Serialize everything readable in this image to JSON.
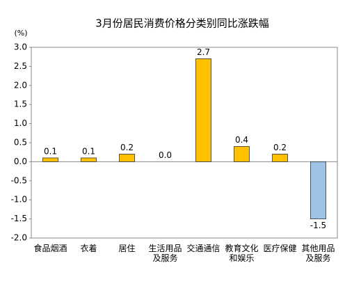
{
  "chart_data": {
    "type": "bar",
    "title": "3月份居民消费价格分类别同比涨跌幅",
    "y_unit": "(%)",
    "categories": [
      "食品烟酒",
      "衣着",
      "居住",
      "生活用品及服务",
      "交通通信",
      "教育文化和娱乐",
      "医疗保健",
      "其他用品及服务"
    ],
    "values": [
      0.1,
      0.1,
      0.2,
      0.0,
      2.7,
      0.4,
      0.2,
      -1.5
    ],
    "value_labels": [
      "0.1",
      "0.1",
      "0.2",
      "0.0",
      "2.7",
      "0.4",
      "0.2",
      "-1.5"
    ],
    "color": "#ffc000",
    "negative_color": "#9dc3e6",
    "ylim": [
      -2.0,
      3.0
    ],
    "yticks": [
      {
        "value": -2.0,
        "label": "-2.0"
      },
      {
        "value": -1.5,
        "label": "-1.5"
      },
      {
        "value": -1.0,
        "label": "-1.0"
      },
      {
        "value": -0.5,
        "label": "-0.5"
      },
      {
        "value": 0.0,
        "label": "0.0"
      },
      {
        "value": 0.5,
        "label": "0.5"
      },
      {
        "value": 1.0,
        "label": "1.0"
      },
      {
        "value": 1.5,
        "label": "1.5"
      },
      {
        "value": 2.0,
        "label": "2.0"
      },
      {
        "value": 2.5,
        "label": "2.5"
      },
      {
        "value": 3.0,
        "label": "3.0"
      }
    ],
    "grid": false
  }
}
